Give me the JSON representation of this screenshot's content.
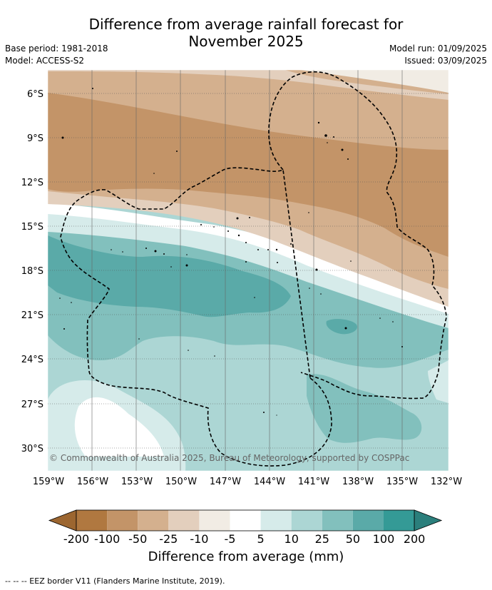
{
  "title_line1": "Difference from average rainfall forecast for",
  "title_line2": "November 2025",
  "meta_left": [
    "Base period: 1981-2018",
    "Model: ACCESS-S2"
  ],
  "meta_right": [
    "Model run: 01/09/2025",
    "Issued: 03/09/2025"
  ],
  "lat_labels": [
    "6°S",
    "9°S",
    "12°S",
    "15°S",
    "18°S",
    "21°S",
    "24°S",
    "27°S",
    "30°S"
  ],
  "lon_labels": [
    "159°W",
    "156°W",
    "153°W",
    "150°W",
    "147°W",
    "144°W",
    "141°W",
    "138°W",
    "135°W",
    "132°W"
  ],
  "copyright": "© Commonwealth of Australia 2025, Bureau of Meteorology, supported by COSPPac",
  "colorbar": {
    "labels": [
      "-200",
      "-100",
      "-50",
      "-25",
      "-10",
      "-5",
      "5",
      "10",
      "25",
      "50",
      "100",
      "200"
    ],
    "colors": [
      "#9c6630",
      "#b07840",
      "#c39468",
      "#d4b08e",
      "#e3cfbd",
      "#f1ece4",
      "#ffffff",
      "#d6ebea",
      "#acd6d4",
      "#82c0bd",
      "#5aaaa8",
      "#349a96",
      "#2b7f7c"
    ],
    "label": "Difference from average (mm)"
  },
  "footer": "--  --  -- EEZ border V11 (Flanders Marine Institute, 2019)."
}
